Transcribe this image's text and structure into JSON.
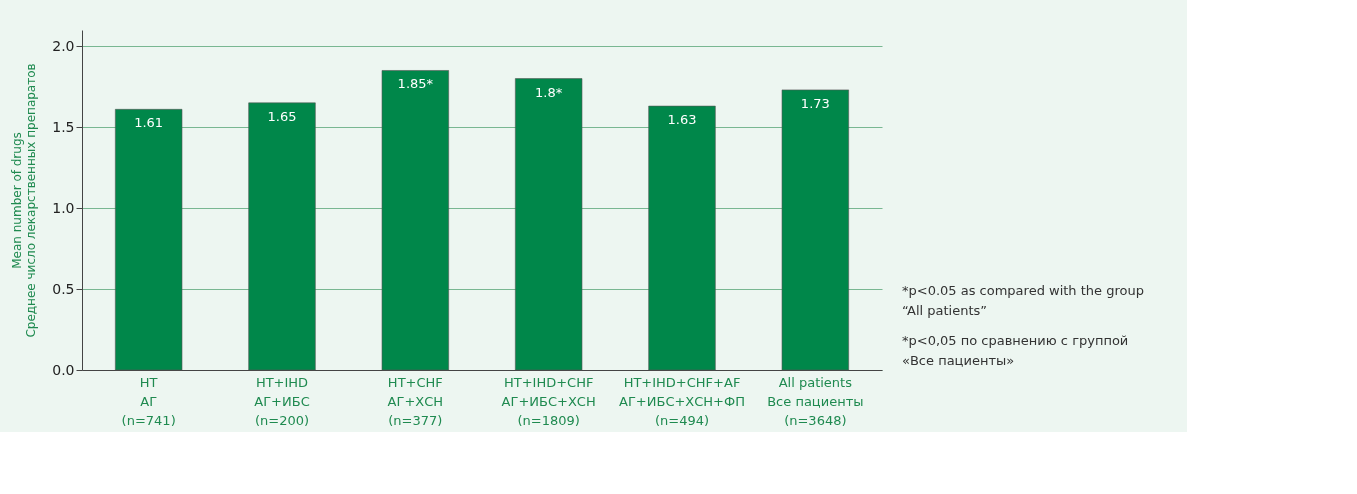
{
  "chart_data": {
    "type": "bar",
    "ylabel": "Mean number of drugs\nСреднее число лекарственных препаратов",
    "categories": [
      "HT\nАГ\n(n=741)",
      "HT+IHD\nАГ+ИБС\n(n=200)",
      "HT+CHF\nАГ+ХСН\n(n=377)",
      "HT+IHD+CHF\nАГ+ИБС+ХСН\n(n=1809)",
      "HT+IHD+CHF+AF\nАГ+ИБС+ХСН+ФП\n(n=494)",
      "All patients\nВсе пациенты\n(n=3648)"
    ],
    "values": [
      1.61,
      1.65,
      1.85,
      1.8,
      1.63,
      1.73
    ],
    "value_labels": [
      "1.61",
      "1.65",
      "1.85*",
      "1.8*",
      "1.63",
      "1.73"
    ],
    "color": "#00874a",
    "ylim": [
      0,
      2.1
    ],
    "yticks": [
      {
        "value": 0,
        "label": "0.0"
      },
      {
        "value": 0.5,
        "label": "0.5"
      },
      {
        "value": 1,
        "label": "1.0"
      },
      1.5,
      {
        "value": 2,
        "label": "2.0"
      }
    ],
    "grid": "y",
    "annotations": [
      "*p<0.05 as compared with the group\n“All patients”",
      "*p<0,05 по сравнению с группой\n«Все пациенты»"
    ]
  }
}
